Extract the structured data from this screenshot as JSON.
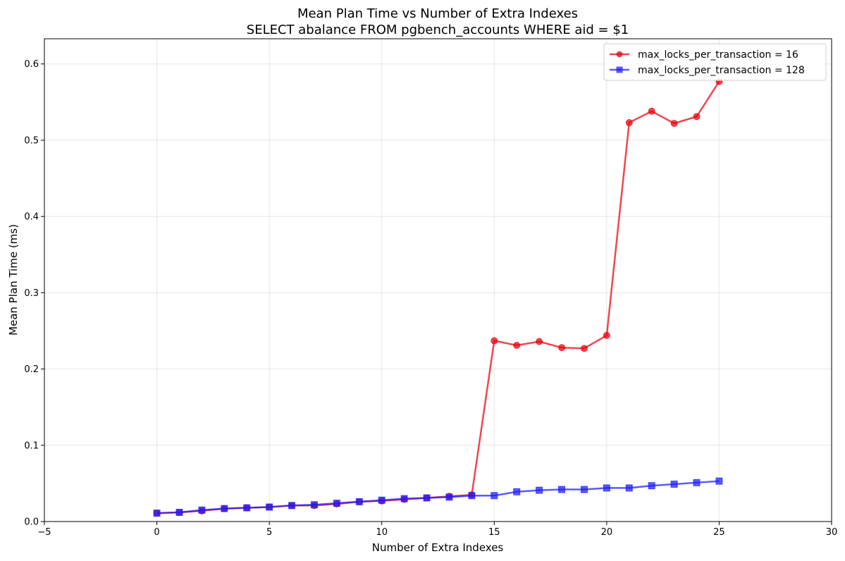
{
  "chart_data": {
    "type": "line",
    "title": "Mean Plan Time vs Number of Extra Indexes",
    "subtitle": "SELECT abalance FROM pgbench_accounts WHERE aid = $1",
    "xlabel": "Number of Extra Indexes",
    "ylabel": "Mean Plan Time (ms)",
    "xlim": [
      -5,
      30
    ],
    "ylim": [
      0,
      0.633
    ],
    "xticks": [
      -5,
      0,
      5,
      10,
      15,
      20,
      25,
      30
    ],
    "yticks": [
      0.0,
      0.1,
      0.2,
      0.3,
      0.4,
      0.5,
      0.6
    ],
    "xtick_labels": [
      "−5",
      "0",
      "5",
      "10",
      "15",
      "20",
      "25",
      "30"
    ],
    "ytick_labels": [
      "0.0",
      "0.1",
      "0.2",
      "0.3",
      "0.4",
      "0.5",
      "0.6"
    ],
    "grid": true,
    "legend_position": "top-right",
    "x": [
      0,
      1,
      2,
      3,
      4,
      5,
      6,
      7,
      8,
      9,
      10,
      11,
      12,
      13,
      14,
      15,
      16,
      17,
      18,
      19,
      20,
      21,
      22,
      23,
      24,
      25
    ],
    "series": [
      {
        "name": "max_locks_per_transaction = 16",
        "color": "#e8000b",
        "marker": "circle",
        "values": [
          0.011,
          0.012,
          0.014,
          0.017,
          0.018,
          0.019,
          0.021,
          0.021,
          0.023,
          0.026,
          0.027,
          0.029,
          0.031,
          0.033,
          0.035,
          0.237,
          0.231,
          0.236,
          0.228,
          0.227,
          0.244,
          0.523,
          0.538,
          0.522,
          0.531,
          0.577
        ]
      },
      {
        "name": "max_locks_per_transaction = 128",
        "color": "#1a1aff",
        "marker": "square",
        "values": [
          0.011,
          0.012,
          0.015,
          0.017,
          0.018,
          0.019,
          0.021,
          0.022,
          0.024,
          0.026,
          0.028,
          0.03,
          0.031,
          0.032,
          0.034,
          0.034,
          0.039,
          0.041,
          0.042,
          0.042,
          0.044,
          0.044,
          0.047,
          0.049,
          0.051,
          0.053
        ]
      }
    ]
  }
}
